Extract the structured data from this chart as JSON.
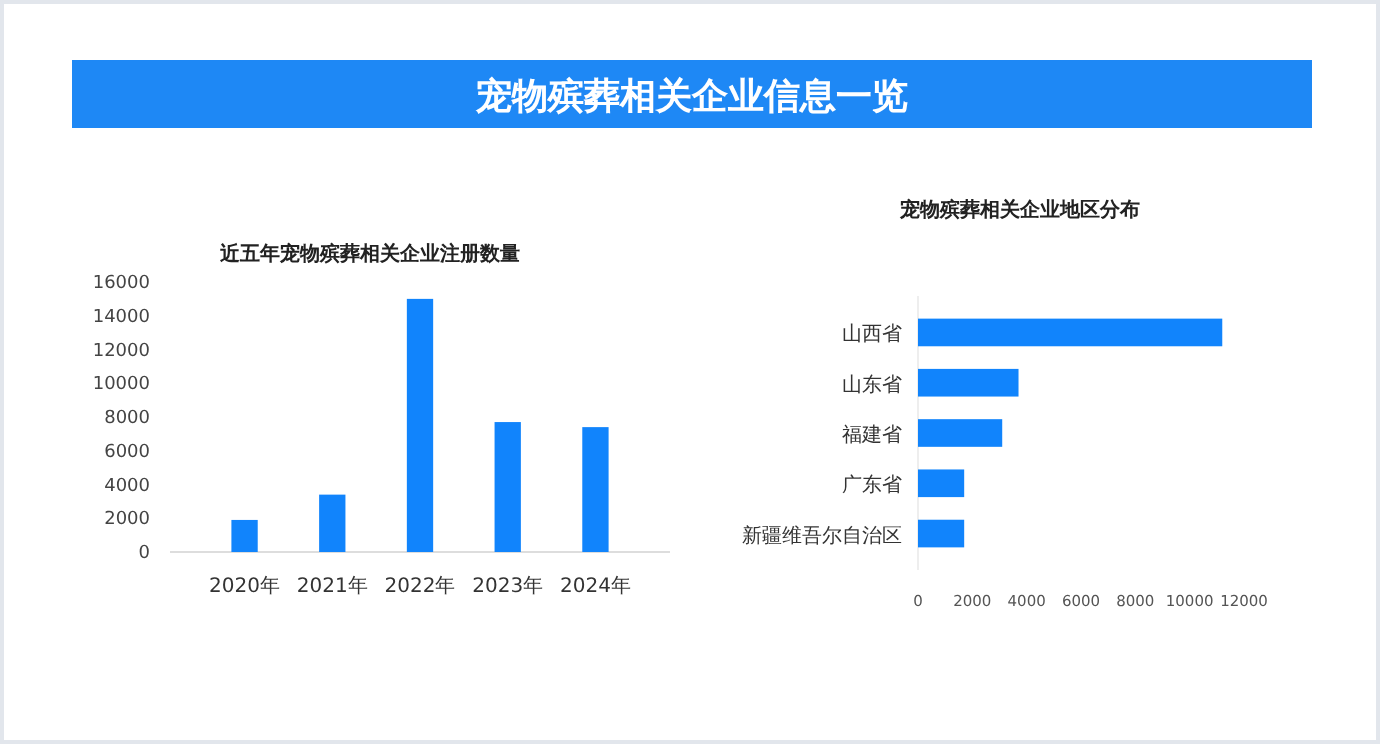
{
  "chart_data": [
    {
      "type": "other",
      "title": "宠物殡葬相关企业信息一览"
    },
    {
      "type": "bar",
      "title": "近五年宠物殡葬相关企业注册数量",
      "categories": [
        "2020年",
        "2021年",
        "2022年",
        "2023年",
        "2024年"
      ],
      "values": [
        1900,
        3400,
        15000,
        7700,
        7400
      ],
      "color": "#1184fc",
      "ylim": [
        0,
        16000
      ],
      "yticks": [
        0,
        2000,
        4000,
        6000,
        8000,
        10000,
        12000,
        14000,
        16000
      ]
    },
    {
      "type": "bar",
      "orientation": "horizontal",
      "title": "宠物殡葬相关企业地区分布",
      "categories": [
        "山西省",
        "山东省",
        "福建省",
        "广东省",
        "新疆维吾尔自治区"
      ],
      "values": [
        11200,
        3700,
        3100,
        1700,
        1700
      ],
      "color": "#1184fc",
      "xlim": [
        0,
        12000
      ],
      "xticks": [
        0,
        2000,
        4000,
        6000,
        8000,
        10000,
        12000
      ]
    }
  ]
}
